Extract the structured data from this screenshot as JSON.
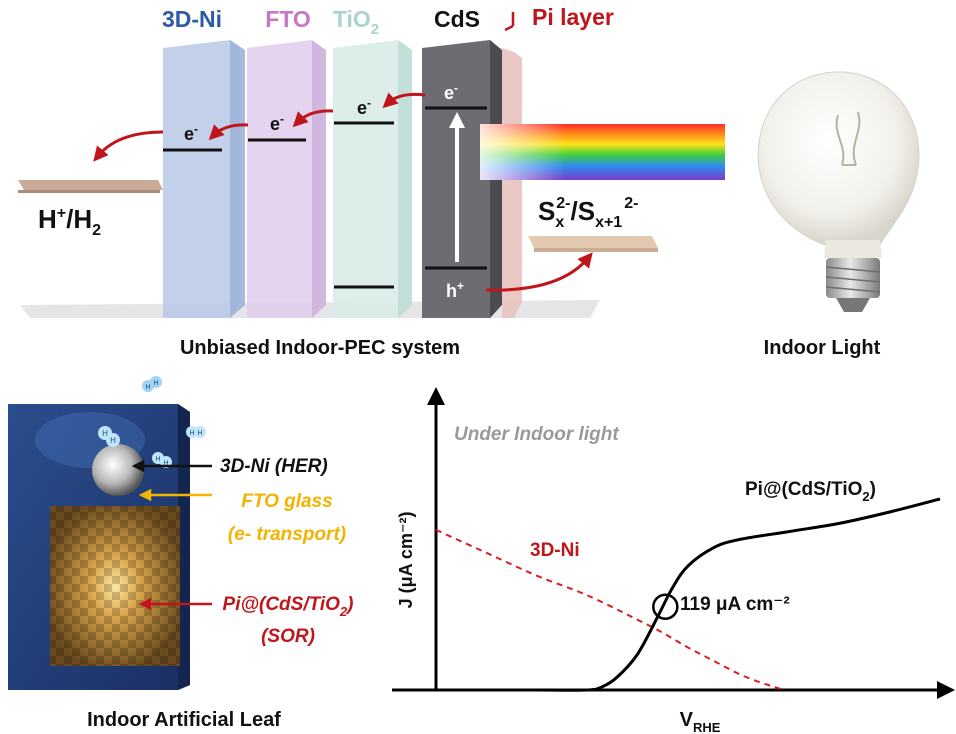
{
  "top": {
    "layers": {
      "ni": "3D-Ni",
      "fto": "FTO",
      "tio2_main": "TiO",
      "tio2_sub": "2",
      "cds": "CdS",
      "pi": "Pi layer"
    },
    "electron": "e",
    "electron_sup": "-",
    "hole": "h",
    "hole_sup": "+",
    "h_couple": {
      "a": "H",
      "a_sup": "+",
      "slash": "/H",
      "b_sub": "2"
    },
    "s_couple": {
      "s1": "S",
      "s1_sub": "x",
      "s1_sup": "2-",
      "slash": "/S",
      "s2_sub": "x+1",
      "s2_sup": "2-"
    },
    "caption": "Unbiased Indoor-PEC system",
    "light_caption": "Indoor Light"
  },
  "leaf": {
    "caption": "Indoor Artificial Leaf",
    "h2_glyph": "H",
    "labels": {
      "ni_her": "3D-Ni (HER)",
      "fto_1": "FTO glass",
      "fto_2": "(e- transport)",
      "pi_main": "Pi@(CdS/TiO",
      "pi_sub": "2",
      "pi_close": ")",
      "pi_2": "(SOR)"
    },
    "colors": {
      "ni": "#111111",
      "fto": "#f2b400",
      "pi": "#c01818"
    }
  },
  "chart_data": {
    "type": "line",
    "title": "Under Indoor light",
    "xlabel": "V",
    "xlabel_sub": "RHE",
    "ylabel": "J (μA cm⁻²)",
    "series": [
      {
        "name": "Pi@(CdS/TiO₂)",
        "style": "solid",
        "color": "#000000",
        "x": [
          0.0,
          0.1,
          0.2,
          0.3,
          0.33,
          0.36,
          0.4,
          0.44,
          0.47,
          0.5,
          0.55,
          0.6,
          0.7,
          0.8,
          0.9,
          1.0
        ],
        "y": [
          0,
          0,
          0,
          0,
          2,
          8,
          22,
          45,
          63,
          76,
          87,
          92,
          97,
          102,
          109,
          117
        ]
      },
      {
        "name": "3D-Ni",
        "style": "dashed",
        "color": "#d42020",
        "x": [
          0.0,
          0.1,
          0.2,
          0.3,
          0.4,
          0.45,
          0.5,
          0.55,
          0.6,
          0.64,
          0.67,
          0.69
        ],
        "y": [
          98,
          84,
          70,
          58,
          43,
          35,
          26,
          18,
          10,
          5,
          2,
          0
        ]
      }
    ],
    "series_labels": {
      "pi_main": "Pi@(CdS/TiO",
      "pi_sub": "2",
      "pi_close": ")",
      "ni": "3D-Ni"
    },
    "annotation": {
      "text": "119 μA cm⁻²",
      "x": 0.455,
      "y": 51
    },
    "xlim": [
      0,
      1.0
    ],
    "ylim": [
      0,
      180
    ]
  }
}
